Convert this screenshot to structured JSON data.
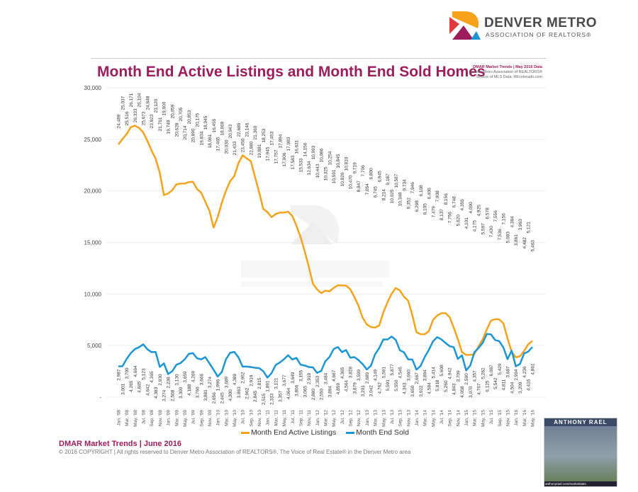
{
  "header": {
    "org_name": "DENVER METRO",
    "org_sub": "ASSOCIATION OF REALTORS®",
    "title": "Month End Active Listings and Month End Sold Homes",
    "source_line1": "DMAR Market Trends | May 2016 Data",
    "source_line2": "Denver Metro Association of REALTORS®",
    "source_line3": "Source of MLS Data: REcolorado.com"
  },
  "watermark": {
    "line1": "DENVER METRO",
    "line2": "ASSOCIATION OF REALTORS"
  },
  "footer": {
    "title": "DMAR Market Trends | June 2016",
    "copyright": "© 2016 COPYRIGHT | All rights reserved to Denver Metro Association of REALTORS®, The Voice of Real Estate® in the Denver Metro area"
  },
  "ad": {
    "name": "ANTHONY RAEL",
    "url": "anthonyrael.com/marketstats"
  },
  "colors": {
    "active": "#f7a21b",
    "sold": "#1b95d3",
    "title": "#9b1d5c"
  },
  "chart_data": {
    "type": "line",
    "ylim": [
      0,
      30000
    ],
    "yticks": [
      "-",
      "5,000",
      "10,000",
      "15,000",
      "20,000",
      "25,000",
      "30,000"
    ],
    "grid": true,
    "legend_position": "bottom",
    "x_start": "Jan '08",
    "x_end": "May '16",
    "xtick_labels": [
      "Jan, '08",
      "Mar, '08",
      "May, '08",
      "Jul, '08",
      "Sep, '08",
      "Nov, '08",
      "Jan, '09",
      "Mar, '09",
      "May, '09",
      "Jul, '09",
      "Sep, '09",
      "Nov, '09",
      "Jan, '10",
      "Mar, '10",
      "May, '10",
      "Jul, '10",
      "Sep, '10",
      "Nov, '10",
      "Jan, '11",
      "Mar, '11",
      "May, '11",
      "Jul, '11",
      "Sep, '11",
      "Nov, '11",
      "Jan, '12",
      "Mar, '12",
      "May, '12",
      "Jul, '12",
      "Sep, '12",
      "Nov, '12",
      "Jan, '13",
      "Mar, '13",
      "May, '13",
      "Jul, '13",
      "Sep, '13",
      "Nov, '13",
      "Jan, '14",
      "Mar, '14",
      "May, '14",
      "Jul, '14",
      "Sep, '14",
      "Nov, '14",
      "Jan, '15",
      "Mar, '15",
      "May, '15",
      "Jul, '15",
      "Sep, '15",
      "Nov, '15",
      "Jan, '16",
      "Mar, '16",
      "May, '16"
    ],
    "series": [
      {
        "name": "Month End Active Listings",
        "values": [
          24489,
          25037,
          25516,
          26171,
          26333,
          26104,
          25673,
          24848,
          23923,
          23120,
          21761,
          19600,
          19748,
          20059,
          20628,
          20705,
          20714,
          20853,
          20890,
          20175,
          19834,
          18945,
          18061,
          16455,
          17465,
          18869,
          20030,
          20943,
          21433,
          22689,
          23450,
          23146,
          22880,
          21360,
          19881,
          18253,
          17945,
          17453,
          17757,
          17894,
          17906,
          17983,
          17583,
          16631,
          15533,
          14156,
          12634,
          10993,
          10443,
          10086,
          10325,
          10254,
          10591,
          10845,
          10826,
          10810,
          10470,
          9719,
          8847,
          7706,
          7054,
          6800,
          6745,
          6945,
          8214,
          9187,
          10025,
          10587,
          10348,
          9734,
          9352,
          7946,
          6298,
          6108,
          6105,
          6406,
          7479,
          7908,
          8137,
          8156,
          7756,
          6748,
          5620,
          4355,
          4101,
          4090,
          4175,
          4925,
          5597,
          6578,
          7430,
          7556,
          7536,
          7156,
          5683,
          4384,
          3861,
          3963,
          4482,
          5121,
          5463
        ]
      },
      {
        "name": "Month End  Sold",
        "values": [
          2987,
          3001,
          3709,
          4265,
          4664,
          4845,
          5123,
          4642,
          4365,
          4383,
          2930,
          3274,
          2238,
          2508,
          3130,
          3300,
          3659,
          4188,
          4269,
          3766,
          3666,
          3881,
          3274,
          2656,
          1996,
          2445,
          3689,
          4300,
          4389,
          3863,
          2962,
          2962,
          2919,
          2845,
          2815,
          2515,
          1891,
          2333,
          3121,
          3357,
          3677,
          4064,
          3649,
          3806,
          3155,
          3065,
          2919,
          2880,
          2353,
          2550,
          3484,
          3894,
          4667,
          4859,
          4365,
          4564,
          3828,
          3879,
          3599,
          3201,
          2689,
          3042,
          4149,
          4762,
          5591,
          5591,
          5877,
          5550,
          4546,
          4343,
          3660,
          3650,
          2667,
          3022,
          3894,
          4584,
          5414,
          5818,
          5608,
          5260,
          4942,
          4843,
          3709,
          4058,
          2590,
          3070,
          4357,
          4767,
          5262,
          6125,
          6087,
          5542,
          5429,
          4811,
          3687,
          4504,
          2994,
          3209,
          4236,
          4416,
          4861
        ]
      }
    ]
  }
}
